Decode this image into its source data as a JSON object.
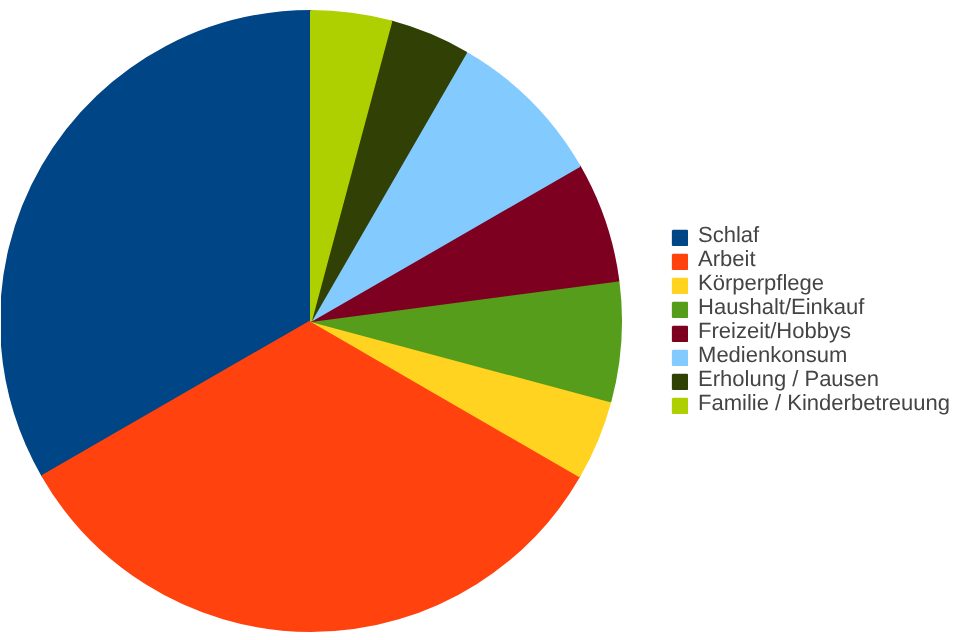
{
  "chart_data": {
    "type": "pie",
    "categories": [
      "Schlaf",
      "Arbeit",
      "Körperpflege",
      "Haushalt/Einkauf",
      "Freizeit/Hobbys",
      "Medienkonsum",
      "Erholung / Pausen",
      "Familie / Kinderbetreuung"
    ],
    "values": [
      33.33,
      33.33,
      4.17,
      6.25,
      6.25,
      8.33,
      4.17,
      4.17
    ],
    "colors": [
      "#004586",
      "#ff420e",
      "#ffd320",
      "#579d1c",
      "#7e0021",
      "#83caff",
      "#314004",
      "#aecf00"
    ],
    "legend": "right"
  }
}
